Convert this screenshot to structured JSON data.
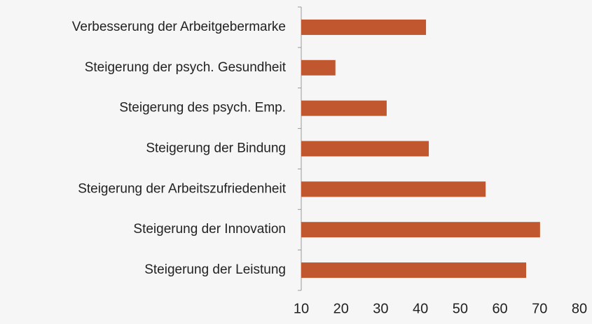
{
  "chart_data": {
    "type": "bar",
    "orientation": "horizontal",
    "categories": [
      "Verbesserung der Arbeitgebermarke",
      "Steigerung der psych. Gesundheit",
      "Steigerung des psych. Emp.",
      "Steigerung der Bindung",
      "Steigerung der Arbeitszufriedenheit",
      "Steigerung der Innovation",
      "Steigerung der Leistung"
    ],
    "values": [
      41.4,
      18.6,
      31.5,
      42.1,
      56.4,
      70.1,
      66.6
    ],
    "color": "#c0572f",
    "xlim": [
      10,
      80
    ],
    "xticks": [
      10,
      20,
      30,
      40,
      50,
      60,
      70,
      80
    ],
    "grid": false
  }
}
